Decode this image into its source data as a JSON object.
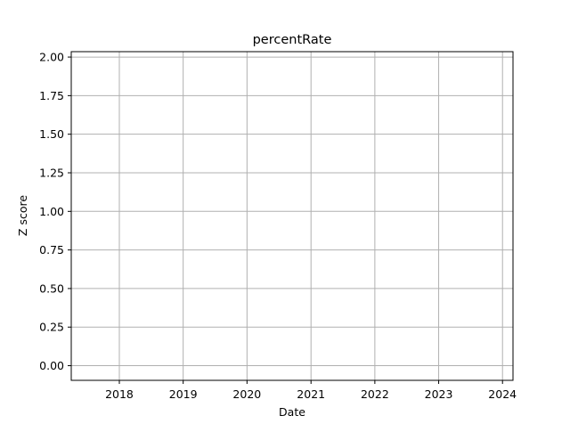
{
  "chart_data": {
    "type": "line",
    "title": "percentRate",
    "xlabel": "Date",
    "ylabel": "Z score",
    "x_ticks": [
      "2018",
      "2019",
      "2020",
      "2021",
      "2022",
      "2023",
      "2024"
    ],
    "y_ticks": [
      "0.00",
      "0.25",
      "0.50",
      "0.75",
      "1.00",
      "1.25",
      "1.50",
      "1.75",
      "2.00"
    ],
    "xlim": [
      "2017-04-01",
      "2024-03-01"
    ],
    "ylim": [
      -0.095,
      2.035
    ],
    "grid": true,
    "series": []
  }
}
